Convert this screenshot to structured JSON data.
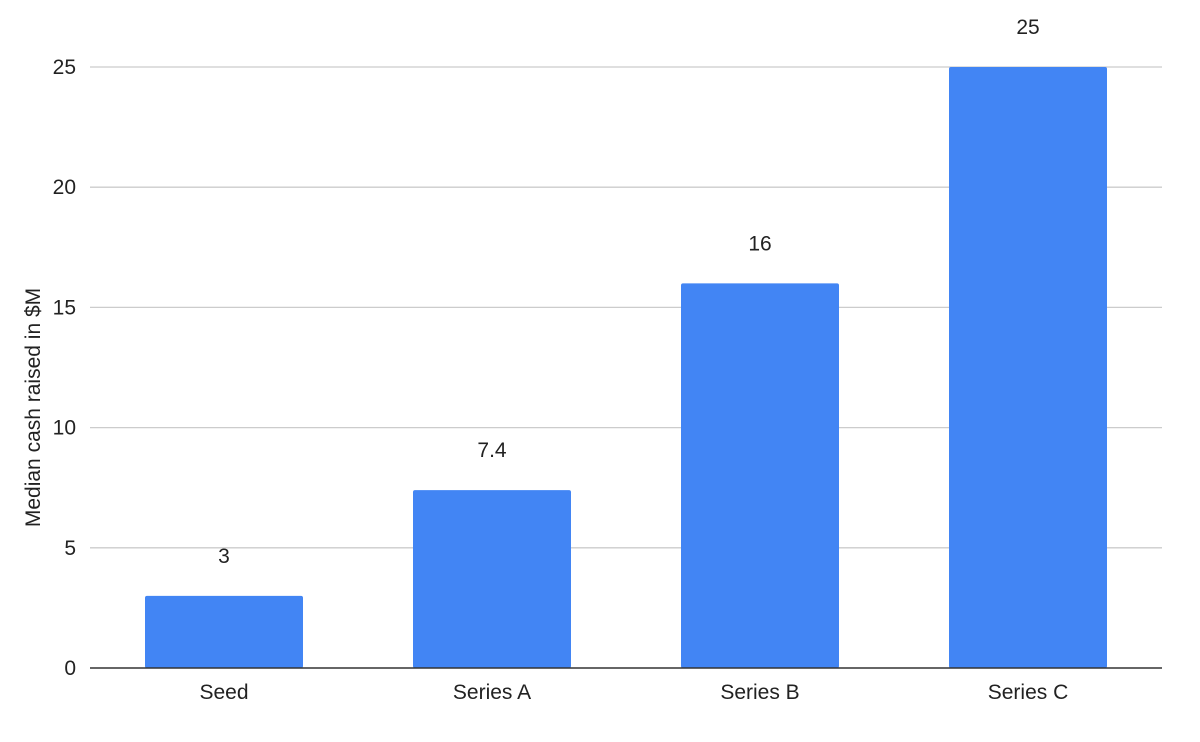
{
  "chart_data": {
    "type": "bar",
    "title": "",
    "xlabel": "",
    "ylabel": "Median cash raised in $M",
    "categories": [
      "Seed",
      "Series A",
      "Series B",
      "Series C"
    ],
    "values": [
      3,
      7.4,
      16,
      25
    ],
    "data_labels": [
      "3",
      "7.4",
      "16",
      "25"
    ],
    "ylim": [
      0,
      25
    ],
    "yticks": [
      0,
      5,
      10,
      15,
      20,
      25
    ],
    "grid": true,
    "legend": "none",
    "bar_color": "#4285f4"
  }
}
